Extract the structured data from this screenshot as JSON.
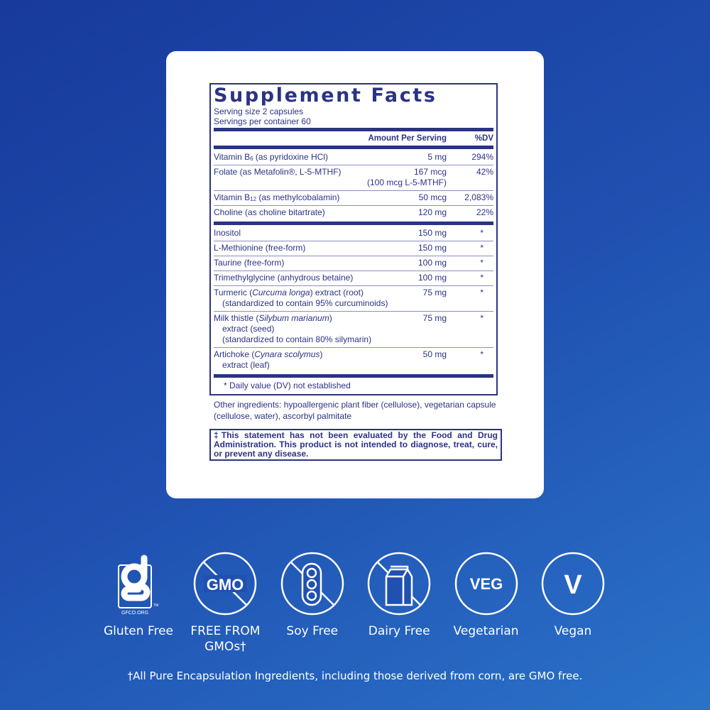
{
  "title": "Supplement Facts",
  "serving_size": "Serving size  2 capsules",
  "servings_per_container": "Servings per container  60",
  "col_amount": "Amount Per Serving",
  "col_dv": "%DV",
  "rows": [
    {
      "name": "Vitamin B",
      "sub": "6",
      "rest": " (as pyridoxine HCl)",
      "amount": "5 mg",
      "dv": "294%"
    },
    {
      "name": "Folate (as Metafolin®, L-5-MTHF)",
      "amount": "167 mcg",
      "amount2": "(100 mcg L-5-MTHF)",
      "dv": "42%"
    },
    {
      "name": "Vitamin B",
      "sub": "12",
      "rest": " (as methylcobalamin)",
      "amount": "50 mcg",
      "dv": "2,083%"
    },
    {
      "name": "Choline (as choline bitartrate)",
      "amount": "120 mg",
      "dv": "22%"
    }
  ],
  "rows2": [
    {
      "name": "Inositol",
      "amount": "150 mg",
      "dv": "*"
    },
    {
      "name": "L-Methionine (free-form)",
      "amount": "150 mg",
      "dv": "*"
    },
    {
      "name": "Taurine (free-form)",
      "amount": "100 mg",
      "dv": "*"
    },
    {
      "name": "Trimethylglycine (anhydrous betaine)",
      "amount": "100 mg",
      "dv": "*"
    },
    {
      "name": "Turmeric (",
      "italic": "Curcuma longa",
      "rest": ") extract (root)",
      "line2": "(standardized to contain 95% curcuminoids)",
      "amount": "75 mg",
      "dv": "*"
    },
    {
      "name": "Milk thistle (",
      "italic": "Silybum marianum",
      "rest": ")",
      "line2": "extract (seed)",
      "line3": "(standardized to contain 80% silymarin)",
      "amount": "75 mg",
      "dv": "*"
    },
    {
      "name": "Artichoke (",
      "italic": "Cynara scolymus",
      "rest": ")",
      "line2": "extract (leaf)",
      "amount": "50 mg",
      "dv": "*"
    }
  ],
  "footnote": "* Daily value (DV) not established",
  "other_ingredients": "Other ingredients: hypoallergenic plant fiber (cellulose), vegetarian capsule (cellulose, water), ascorbyl palmitate",
  "disclaimer": "‡This statement has not been evaluated by the Food and Drug Administration. This product is not intended to diagnose, treat, cure, or prevent any disease.",
  "badges": [
    {
      "label": "Gluten Free",
      "icon": "gluten-free-gfco-icon",
      "logo_text": "GFCO.ORG"
    },
    {
      "label": "FREE FROM GMOs†",
      "icon": "no-gmo-icon",
      "logo_text": "GMO"
    },
    {
      "label": "Soy Free",
      "icon": "no-soy-icon"
    },
    {
      "label": "Dairy Free",
      "icon": "no-dairy-icon"
    },
    {
      "label": "Vegetarian",
      "icon": "vegetarian-icon",
      "logo_text": "VEG"
    },
    {
      "label": "Vegan",
      "icon": "vegan-icon",
      "logo_text": "V"
    }
  ],
  "gmo_note": "†All Pure Encapsulation Ingredients, including those derived from corn, are GMO free.",
  "colors": {
    "label_navy": "#2b3384",
    "background": "#1f4fb0"
  }
}
